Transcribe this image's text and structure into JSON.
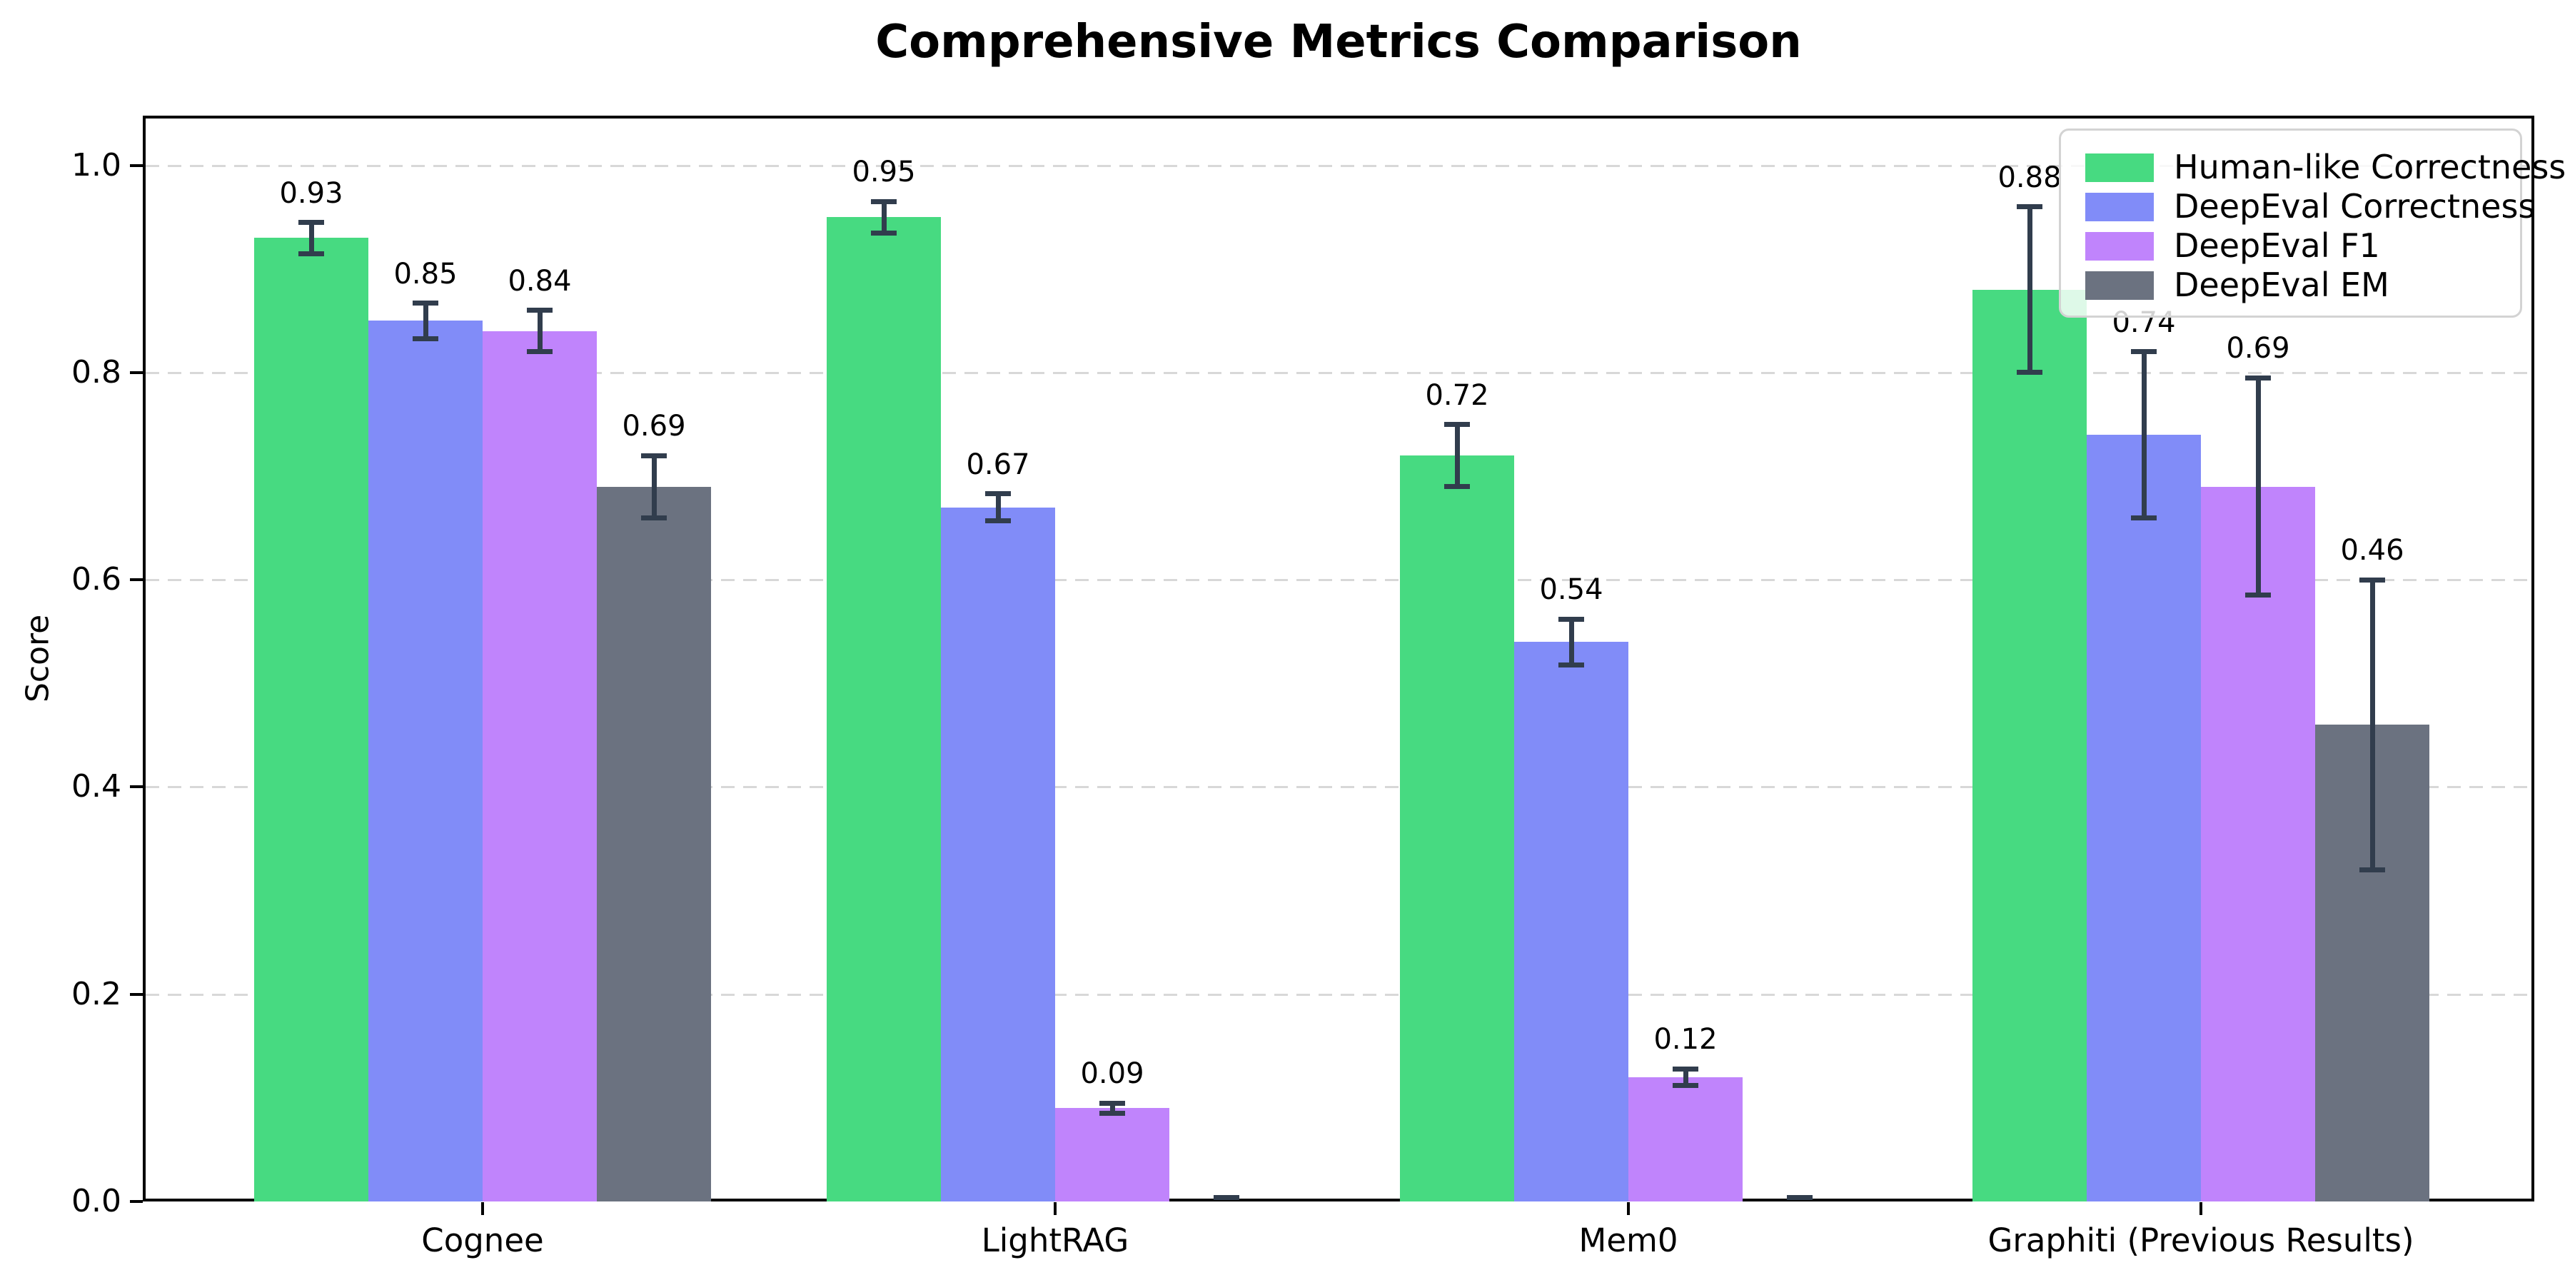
{
  "figure": {
    "title": "Comprehensive Metrics Comparison"
  },
  "chart_data": {
    "type": "bar",
    "title": "Comprehensive Metrics Comparison",
    "ylabel": "Score",
    "xlabel": "",
    "categories": [
      "Cognee",
      "LightRAG",
      "Mem0",
      "Graphiti (Previous Results)"
    ],
    "series": [
      {
        "name": "Human-like Correctness",
        "color": "#47da81",
        "values": [
          0.93,
          0.95,
          0.72,
          0.88
        ],
        "errors": [
          0.015,
          0.015,
          0.03,
          0.08
        ]
      },
      {
        "name": "DeepEval Correctness",
        "color": "#818cf8",
        "values": [
          0.85,
          0.67,
          0.54,
          0.74
        ],
        "errors": [
          0.017,
          0.013,
          0.022,
          0.08
        ]
      },
      {
        "name": "DeepEval F1",
        "color": "#c084fc",
        "values": [
          0.84,
          0.09,
          0.12,
          0.69
        ],
        "errors": [
          0.02,
          0.005,
          0.008,
          0.105
        ]
      },
      {
        "name": "DeepEval EM",
        "color": "#6b7280",
        "values": [
          0.69,
          0.0,
          0.0,
          0.46
        ],
        "errors": [
          0.03,
          0.004,
          0.004,
          0.14
        ]
      }
    ],
    "value_labels": [
      [
        "0.93",
        "0.95",
        "0.72",
        "0.88"
      ],
      [
        "0.85",
        "0.67",
        "0.54",
        "0.74"
      ],
      [
        "0.84",
        "0.09",
        "0.12",
        "0.69"
      ],
      [
        "0.69",
        "",
        "",
        "0.46"
      ]
    ],
    "yticks": [
      0.0,
      0.2,
      0.4,
      0.6,
      0.8,
      1.0
    ],
    "ytick_labels": [
      "0.0",
      "0.2",
      "0.4",
      "0.6",
      "0.8",
      "1.0"
    ],
    "ylim": [
      0,
      1.048
    ],
    "grid": "horizontal-dashed",
    "legend_position": "upper-right",
    "error_bars": true
  },
  "colors": {
    "background": "#ffffff",
    "axis": "#000000",
    "grid": "#d8d8d8",
    "error_bar": "#313d4d",
    "legend_border": "#d3d3d3"
  }
}
